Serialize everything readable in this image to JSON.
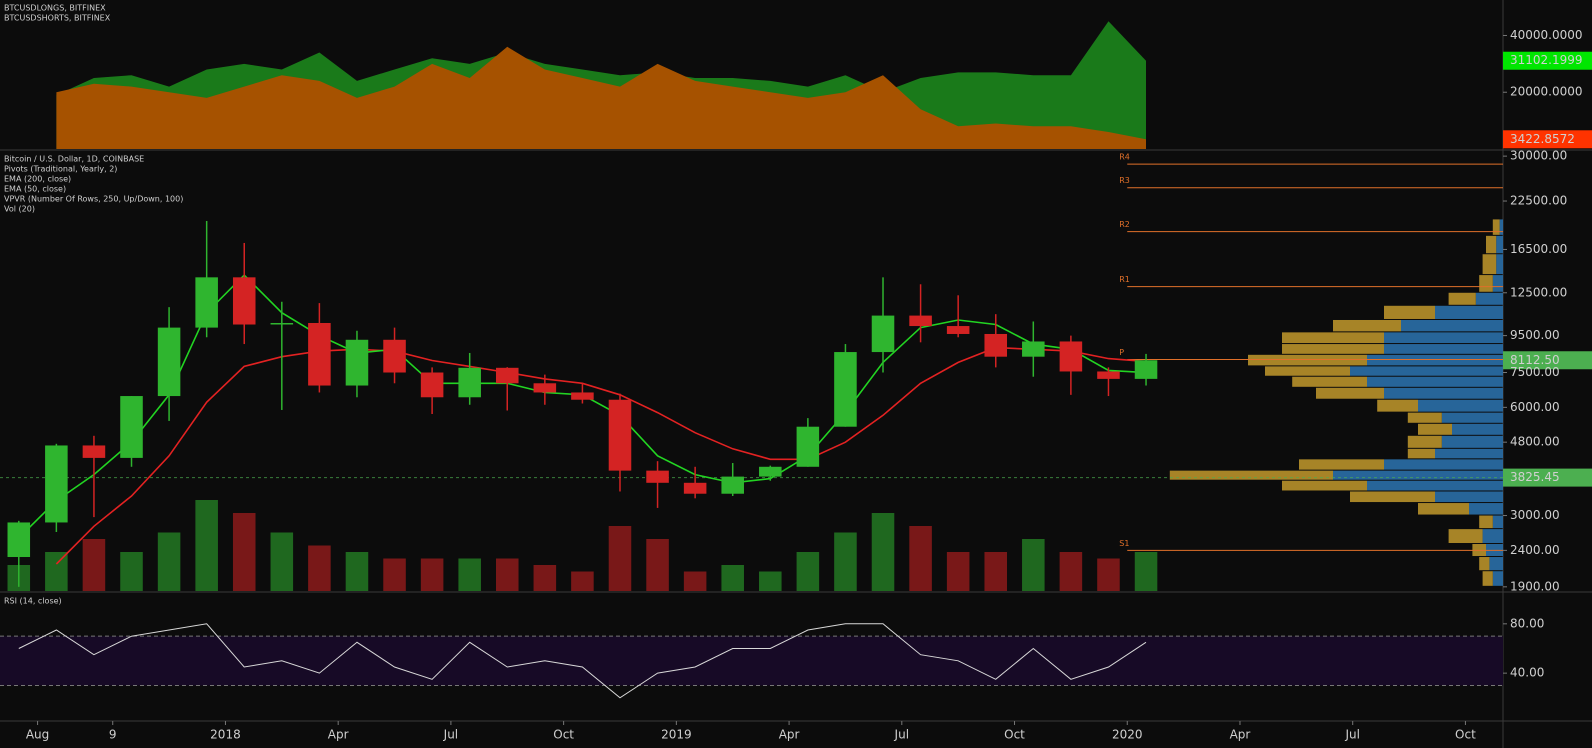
{
  "chart_data": [
    {
      "type": "area",
      "x": [
        "2017-07",
        "2017-08",
        "2017-09",
        "2017-10",
        "2017-11",
        "2017-12",
        "2018-01",
        "2018-02",
        "2018-03",
        "2018-04",
        "2018-05",
        "2018-06",
        "2018-07",
        "2018-08",
        "2018-09",
        "2018-10",
        "2018-11",
        "2018-12",
        "2019-01",
        "2019-02",
        "2019-03",
        "2019-04",
        "2019-05",
        "2019-06",
        "2019-07",
        "2019-08",
        "2019-09",
        "2019-10",
        "2019-11",
        "2019-12",
        "2020-01"
      ],
      "xlim": [
        "2017-07",
        "2020-11"
      ],
      "ylim": [
        0,
        52500
      ],
      "yticks": [
        {
          "value": 40000,
          "label": "40000.0000"
        },
        {
          "value": 20000,
          "label": "20000.0000"
        }
      ],
      "series": [
        {
          "name": "BTCUSDLONGS, BITFINEX",
          "color": "#1a7a1a",
          "label_color": "#00e600",
          "values": [
            null,
            19000,
            25000,
            26000,
            22000,
            28000,
            30000,
            28000,
            34000,
            24000,
            28000,
            32000,
            30000,
            34000,
            30000,
            28000,
            26000,
            27000,
            25000,
            25000,
            24000,
            22000,
            26000,
            20000,
            25000,
            27000,
            27000,
            26000,
            26000,
            45000,
            31102.1999
          ],
          "value_labels": [
            null,
            null,
            null,
            null,
            null,
            null,
            null,
            null,
            null,
            null,
            null,
            null,
            null,
            null,
            null,
            null,
            null,
            null,
            null,
            null,
            null,
            null,
            null,
            null,
            null,
            null,
            null,
            null,
            null,
            null,
            "31102.1999"
          ]
        },
        {
          "name": "BTCUSDSHORTS, BITFINEX",
          "color": "#a65200",
          "label_color": "#ff3300",
          "values": [
            null,
            20000,
            23000,
            22000,
            20000,
            18000,
            22000,
            26000,
            24000,
            18000,
            22000,
            30000,
            25000,
            36000,
            28000,
            25000,
            22000,
            30000,
            24000,
            22000,
            20000,
            18000,
            20000,
            26000,
            14000,
            8000,
            9000,
            8000,
            8000,
            6000,
            3422.8572
          ],
          "value_labels": [
            null,
            null,
            null,
            null,
            null,
            null,
            null,
            null,
            null,
            null,
            null,
            null,
            null,
            null,
            null,
            null,
            null,
            null,
            null,
            null,
            null,
            null,
            null,
            null,
            null,
            null,
            null,
            null,
            null,
            null,
            "3422.8572"
          ]
        }
      ]
    },
    {
      "type": "candlestick",
      "title": "Bitcoin / U.S. Dollar, 1D, COINBASE",
      "x": [
        "2017-07",
        "2017-08",
        "2017-09",
        "2017-10",
        "2017-11",
        "2017-12",
        "2018-01",
        "2018-02",
        "2018-03",
        "2018-04",
        "2018-05",
        "2018-06",
        "2018-07",
        "2018-08",
        "2018-09",
        "2018-10",
        "2018-11",
        "2018-12",
        "2019-01",
        "2019-02",
        "2019-03",
        "2019-04",
        "2019-05",
        "2019-06",
        "2019-07",
        "2019-08",
        "2019-09",
        "2019-10",
        "2019-11",
        "2019-12",
        "2020-01"
      ],
      "xlim": [
        "2017-07",
        "2020-11"
      ],
      "log_scale": true,
      "ylim": [
        1850,
        31000
      ],
      "yticks": [
        {
          "value": 30000,
          "label": "30000.00"
        },
        {
          "value": 22500,
          "label": "22500.00"
        },
        {
          "value": 16500,
          "label": "16500.00"
        },
        {
          "value": 12500,
          "label": "12500.00"
        },
        {
          "value": 9500,
          "label": "9500.00"
        },
        {
          "value": 7500,
          "label": "7500.00"
        },
        {
          "value": 6000,
          "label": "6000.00"
        },
        {
          "value": 4800,
          "label": "4800.00"
        },
        {
          "value": 3000,
          "label": "3000.00"
        },
        {
          "value": 2400,
          "label": "2400.00"
        },
        {
          "value": 1900,
          "label": "1900.00"
        }
      ],
      "up_color": "#2fb52f",
      "down_color": "#d42323",
      "label_color": "#4caf50",
      "open": [
        2300,
        2870,
        4700,
        4340,
        6450,
        10000,
        13800,
        10200,
        10300,
        6900,
        9250,
        7500,
        6400,
        7730,
        7000,
        6600,
        6300,
        4000,
        3700,
        3450,
        3850,
        4100,
        5300,
        8550,
        10800,
        10100,
        9600,
        8300,
        9150,
        7550,
        7200
      ],
      "high": [
        2900,
        4750,
        5000,
        6450,
        11400,
        19800,
        17200,
        11800,
        11700,
        9800,
        10000,
        7750,
        8500,
        7760,
        7400,
        7000,
        6550,
        4250,
        4100,
        4200,
        4130,
        5600,
        9000,
        13800,
        13200,
        12300,
        10900,
        10400,
        9500,
        7750,
        8450
      ],
      "low": [
        1900,
        2700,
        2970,
        4100,
        5500,
        9400,
        9000,
        5900,
        6600,
        6400,
        7000,
        5750,
        6100,
        5880,
        6100,
        6150,
        3500,
        3150,
        3350,
        3400,
        3750,
        4100,
        5300,
        7500,
        9100,
        9400,
        7750,
        7300,
        6500,
        6450,
        6900
      ],
      "close": [
        2870,
        4700,
        4340,
        6450,
        10000,
        13800,
        10200,
        10300,
        6900,
        9250,
        7500,
        6400,
        7730,
        7000,
        6600,
        6300,
        4000,
        3700,
        3450,
        3850,
        4100,
        5300,
        8550,
        10800,
        10100,
        9600,
        8300,
        9150,
        7550,
        7200,
        8112.5
      ],
      "close_labels": [
        null,
        null,
        null,
        null,
        null,
        null,
        null,
        null,
        null,
        null,
        null,
        null,
        null,
        null,
        null,
        null,
        null,
        null,
        null,
        null,
        null,
        null,
        null,
        null,
        null,
        null,
        null,
        null,
        null,
        null,
        "8112.50"
      ],
      "pivots": {
        "name": "Pivots (Traditional, Yearly, 2)",
        "color": "#e0702a",
        "start": "2020-01",
        "levels": [
          {
            "label": "R4",
            "value": 28500
          },
          {
            "label": "R3",
            "value": 24500
          },
          {
            "label": "R2",
            "value": 18500
          },
          {
            "label": "R1",
            "value": 13000
          },
          {
            "label": "P",
            "value": 8150
          },
          {
            "label": "S1",
            "value": 2400
          }
        ]
      },
      "series": [
        {
          "name": "EMA (200, close)",
          "color": "#e32222",
          "values": [
            null,
            2200,
            2800,
            3400,
            4400,
            6200,
            7800,
            8300,
            8600,
            8700,
            8600,
            8100,
            7800,
            7500,
            7200,
            7000,
            6500,
            5800,
            5100,
            4600,
            4300,
            4300,
            4800,
            5700,
            7000,
            8000,
            8800,
            8700,
            8600,
            8200,
            8050
          ]
        },
        {
          "name": "EMA (50, close)",
          "color": "#22d422",
          "values": [
            2600,
            3300,
            3900,
            4800,
            6500,
            11000,
            14000,
            11000,
            9500,
            8500,
            8700,
            7000,
            7000,
            7000,
            6600,
            6500,
            5700,
            4400,
            3900,
            3700,
            3800,
            4400,
            5800,
            8000,
            10000,
            10500,
            10200,
            9000,
            8700,
            7600,
            7500
          ]
        }
      ],
      "vpvr": {
        "name": "VPVR (Number Of Rows, 250, Up/Down, 100)",
        "up_color": "#2a6fa8",
        "down_color": "#b8912a",
        "xlim": [
          0,
          100
        ],
        "bins": [
          1900,
          2100,
          2300,
          2500,
          2750,
          3000,
          3250,
          3500,
          3750,
          4000,
          4300,
          4600,
          5000,
          5400,
          5800,
          6300,
          6800,
          7300,
          7800,
          8400,
          9000,
          9700,
          10500,
          11500,
          12500,
          14000,
          16000,
          18000,
          20000
        ],
        "up": [
          3,
          4,
          5,
          6,
          3,
          10,
          20,
          40,
          50,
          35,
          20,
          18,
          15,
          18,
          25,
          35,
          40,
          45,
          40,
          35,
          35,
          30,
          20,
          8,
          3,
          2,
          2,
          1
        ],
        "down": [
          3,
          3,
          4,
          10,
          4,
          15,
          25,
          25,
          48,
          25,
          8,
          10,
          10,
          10,
          12,
          20,
          22,
          25,
          35,
          30,
          30,
          20,
          15,
          8,
          4,
          4,
          3,
          2
        ]
      },
      "poc": {
        "value": 3825.45,
        "label": "3825.45",
        "color": "#4caf50"
      },
      "volume": {
        "name": "Vol (20)",
        "ylim": [
          0,
          100
        ],
        "values": [
          20,
          30,
          40,
          30,
          45,
          70,
          60,
          45,
          35,
          30,
          25,
          25,
          25,
          25,
          20,
          15,
          50,
          40,
          15,
          20,
          15,
          30,
          45,
          60,
          50,
          30,
          30,
          40,
          30,
          25,
          30
        ]
      }
    },
    {
      "type": "line",
      "x": [
        "2017-07",
        "2017-08",
        "2017-09",
        "2017-10",
        "2017-11",
        "2017-12",
        "2018-01",
        "2018-02",
        "2018-03",
        "2018-04",
        "2018-05",
        "2018-06",
        "2018-07",
        "2018-08",
        "2018-09",
        "2018-10",
        "2018-11",
        "2018-12",
        "2019-01",
        "2019-02",
        "2019-03",
        "2019-04",
        "2019-05",
        "2019-06",
        "2019-07",
        "2019-08",
        "2019-09",
        "2019-10",
        "2019-11",
        "2019-12",
        "2020-01"
      ],
      "xlim": [
        "2017-07",
        "2020-11"
      ],
      "ylim": [
        2,
        105
      ],
      "yticks": [
        {
          "value": 80,
          "label": "80.00"
        },
        {
          "value": 40,
          "label": "40.00"
        }
      ],
      "band": [
        30,
        70
      ],
      "band_color": "#170a26",
      "series": [
        {
          "name": "RSI (14, close)",
          "color": "#d8d8d8",
          "values": [
            60,
            75,
            55,
            70,
            75,
            80,
            45,
            50,
            40,
            65,
            45,
            35,
            65,
            45,
            50,
            45,
            20,
            40,
            45,
            60,
            60,
            75,
            80,
            80,
            55,
            50,
            35,
            60,
            35,
            45,
            65
          ]
        }
      ],
      "xticks": [
        {
          "value": "2017-08",
          "label": "Aug"
        },
        {
          "value": "2017-10",
          "label": "9"
        },
        {
          "value": "2018-01",
          "label": "2018"
        },
        {
          "value": "2018-04",
          "label": "Apr"
        },
        {
          "value": "2018-07",
          "label": "Jul"
        },
        {
          "value": "2018-10",
          "label": "Oct"
        },
        {
          "value": "2019-01",
          "label": "2019"
        },
        {
          "value": "2019-04",
          "label": "Apr"
        },
        {
          "value": "2019-07",
          "label": "Jul"
        },
        {
          "value": "2019-10",
          "label": "Oct"
        },
        {
          "value": "2020-01",
          "label": "2020"
        },
        {
          "value": "2020-04",
          "label": "Apr"
        },
        {
          "value": "2020-07",
          "label": "Jul"
        },
        {
          "value": "2020-10",
          "label": "Oct"
        }
      ]
    }
  ]
}
